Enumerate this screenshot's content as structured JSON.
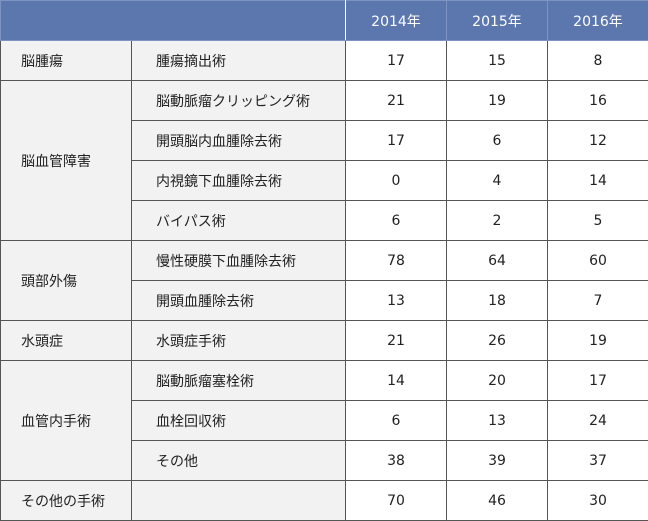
{
  "header": {
    "years": [
      "2014年",
      "2015年",
      "2016年"
    ]
  },
  "groups": [
    {
      "category": "脳腫瘍",
      "rows": [
        {
          "procedure": "腫瘍摘出術",
          "values": [
            "17",
            "15",
            "8"
          ]
        }
      ]
    },
    {
      "category": "脳血管障害",
      "rows": [
        {
          "procedure": "脳動脈瘤クリッピング術",
          "values": [
            "21",
            "19",
            "16"
          ]
        },
        {
          "procedure": "開頭脳内血腫除去術",
          "values": [
            "17",
            "6",
            "12"
          ]
        },
        {
          "procedure": "内視鏡下血腫除去術",
          "values": [
            "0",
            "4",
            "14"
          ]
        },
        {
          "procedure": "バイパス術",
          "values": [
            "6",
            "2",
            "5"
          ]
        }
      ]
    },
    {
      "category": "頭部外傷",
      "rows": [
        {
          "procedure": "慢性硬膜下血腫除去術",
          "values": [
            "78",
            "64",
            "60"
          ]
        },
        {
          "procedure": "開頭血腫除去術",
          "values": [
            "13",
            "18",
            "7"
          ]
        }
      ]
    },
    {
      "category": "水頭症",
      "rows": [
        {
          "procedure": "水頭症手術",
          "values": [
            "21",
            "26",
            "19"
          ]
        }
      ]
    },
    {
      "category": "血管内手術",
      "rows": [
        {
          "procedure": "脳動脈瘤塞栓術",
          "values": [
            "14",
            "20",
            "17"
          ]
        },
        {
          "procedure": "血栓回収術",
          "values": [
            "6",
            "13",
            "24"
          ]
        },
        {
          "procedure": "その他",
          "values": [
            "38",
            "39",
            "37"
          ]
        }
      ]
    },
    {
      "category": "その他の手術",
      "rows": [
        {
          "procedure": "",
          "values": [
            "70",
            "46",
            "30"
          ]
        }
      ]
    }
  ]
}
